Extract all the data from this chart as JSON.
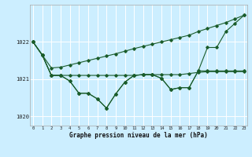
{
  "xlabel": "Graphe pression niveau de la mer (hPa)",
  "bg_color": "#cceeff",
  "grid_color": "#ffffff",
  "line_color": "#1a5c2a",
  "xlim_min": -0.3,
  "xlim_max": 23.3,
  "ylim_min": 1019.75,
  "ylim_max": 1023.0,
  "ytick_values": [
    1020,
    1021,
    1022
  ],
  "xtick_labels": [
    "0",
    "1",
    "2",
    "3",
    "4",
    "5",
    "6",
    "7",
    "8",
    "9",
    "10",
    "11",
    "12",
    "13",
    "14",
    "15",
    "16",
    "17",
    "18",
    "19",
    "20",
    "21",
    "22",
    "23"
  ],
  "y_main": [
    1022.0,
    1021.65,
    1021.1,
    1021.1,
    1020.95,
    1020.62,
    1020.62,
    1020.47,
    1020.22,
    1020.6,
    1020.92,
    1021.1,
    1021.12,
    1021.12,
    1021.02,
    1020.72,
    1020.77,
    1020.77,
    1021.22,
    1021.85,
    1021.85,
    1022.28,
    1022.5,
    1022.72
  ],
  "y_upper": [
    1022.0,
    1021.65,
    1021.3,
    1021.32,
    1021.38,
    1021.44,
    1021.5,
    1021.56,
    1021.62,
    1021.68,
    1021.75,
    1021.82,
    1021.88,
    1021.94,
    1022.0,
    1022.06,
    1022.12,
    1022.18,
    1022.28,
    1022.36,
    1022.44,
    1022.52,
    1022.62,
    1022.72
  ],
  "y_flat": [
    1022.0,
    1021.65,
    1021.1,
    1021.1,
    1021.1,
    1021.1,
    1021.1,
    1021.1,
    1021.1,
    1021.1,
    1021.1,
    1021.1,
    1021.12,
    1021.12,
    1021.12,
    1021.12,
    1021.12,
    1021.15,
    1021.18,
    1021.2,
    1021.2,
    1021.2,
    1021.2,
    1021.2
  ],
  "y_lower": [
    1022.0,
    1021.65,
    1021.1,
    1021.1,
    1020.95,
    1020.62,
    1020.62,
    1020.47,
    1020.22,
    1020.6,
    1020.92,
    1021.1,
    1021.12,
    1021.12,
    1021.02,
    1020.72,
    1020.77,
    1020.77,
    1021.22,
    1021.22,
    1021.22,
    1021.22,
    1021.22,
    1021.22
  ]
}
